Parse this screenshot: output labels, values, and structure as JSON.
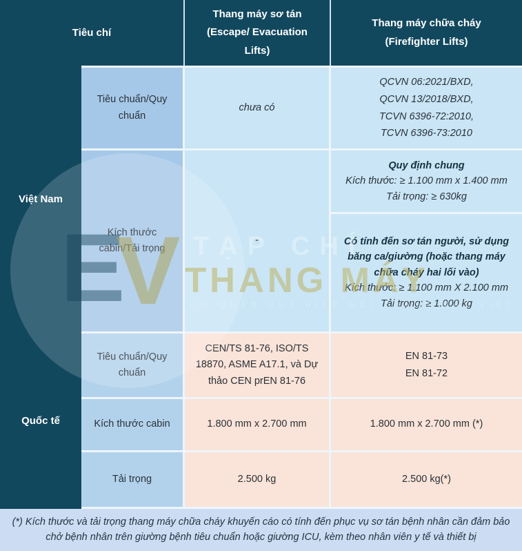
{
  "colors": {
    "header_bg": "#12485e",
    "subcriteria_vn_bg": "#a6c8e8",
    "subcriteria_intl_bg": "#b2d2ec",
    "vietnam_cells_bg": "#c9e5f6",
    "international_cells_bg": "#fae3d8",
    "footer_bg": "#ccdcf2",
    "separator": "#eef5fb"
  },
  "header": {
    "criteria": "Tiêu chí",
    "escape_lifts": "Thang máy sơ tán (Escape/ Evacuation Lifts)",
    "firefighter_lifts": "Thang máy chữa cháy (Firefighter Lifts)"
  },
  "vietnam": {
    "region": "Việt Nam",
    "standards": {
      "label": "Tiêu chuẩn/Quy chuẩn",
      "escape": "chưa có",
      "firefighter": "QCVN 06:2021/BXD,\nQCVN 13/2018/BXD,\nTCVN 6396-72:2010,\nTCVN 6396-73:2010"
    },
    "dimensions": {
      "label": "Kích thước cabin/Tải trọng",
      "escape": "-",
      "general": {
        "title": "Quy định chung",
        "size": "Kích thước: ≥ 1.100 mm x 1.400 mm",
        "load": "Tải trọng: ≥ 630kg"
      },
      "evacuation": {
        "title": "Có tính đến sơ tán người, sử dụng băng ca/giường (hoặc thang máy chữa cháy hai lối vào)",
        "size": "Kích thước: ≥ 1.100 mm X 2.100 mm",
        "load": "Tải trọng: ≥  1.000 kg"
      }
    }
  },
  "international": {
    "region": "Quốc tế",
    "standards": {
      "label": "Tiêu chuẩn/Quy chuẩn",
      "escape": "CEN/TS 81-76, ISO/TS 18870, ASME A17.1, và Dự thảo CEN prEN 81-76",
      "firefighter": "EN 81-73\nEN 81-72"
    },
    "cabin_size": {
      "label": "Kích thước cabin",
      "escape": "1.800 mm x 2.700 mm",
      "firefighter": "1.800 mm x 2.700 mm (*)"
    },
    "load": {
      "label": "Tải trọng",
      "escape": "2.500 kg",
      "firefighter": "2.500 kg(*)"
    }
  },
  "footnote": "(*) Kích thước và tải trọng thang máy chữa cháy khuyến cáo có tính đến phục vụ sơ tán bệnh nhân cần đảm bảo chở bệnh nhân trên giường bệnh tiêu chuẩn hoặc giường ICU, kèm theo nhân viên y tế và thiết bị",
  "watermark": {
    "logo_e": "E",
    "logo_v": "V",
    "magazine": "TẠP CHÍ",
    "name": "THANG MÁY",
    "tagline": "CƠ QUAN CỦA HIỆP HỘI THANG MÁY VIỆT NAM"
  }
}
